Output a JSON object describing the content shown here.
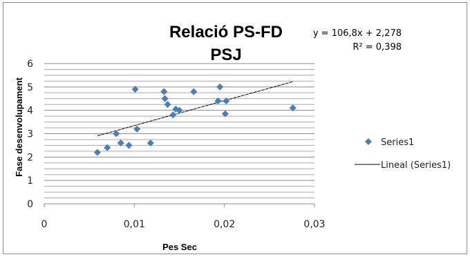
{
  "chart_data": {
    "type": "scatter",
    "title": "Relació PS-FD",
    "subtitle": "PSJ",
    "xlabel": "Pes Sec",
    "ylabel": "Fase desenvolupament",
    "xlim": [
      0,
      0.03
    ],
    "ylim": [
      0,
      6
    ],
    "x_ticks": [
      "0",
      "0,01",
      "0,02",
      "0,03"
    ],
    "y_ticks": [
      "0",
      "1",
      "2",
      "3",
      "4",
      "5",
      "6"
    ],
    "grid": "horizontal",
    "legend_position": "right",
    "series": [
      {
        "name": "Series1",
        "marker": "diamond",
        "color": "#4a7ebb",
        "points": [
          {
            "x": 0.0059,
            "y": 2.2
          },
          {
            "x": 0.007,
            "y": 2.4
          },
          {
            "x": 0.008,
            "y": 3.0
          },
          {
            "x": 0.0085,
            "y": 2.6
          },
          {
            "x": 0.0094,
            "y": 2.5
          },
          {
            "x": 0.0101,
            "y": 4.9
          },
          {
            "x": 0.0103,
            "y": 3.2
          },
          {
            "x": 0.0118,
            "y": 2.6
          },
          {
            "x": 0.0133,
            "y": 4.8
          },
          {
            "x": 0.0134,
            "y": 4.5
          },
          {
            "x": 0.0137,
            "y": 4.25
          },
          {
            "x": 0.0143,
            "y": 3.8
          },
          {
            "x": 0.0146,
            "y": 4.05
          },
          {
            "x": 0.015,
            "y": 4.0
          },
          {
            "x": 0.0166,
            "y": 4.8
          },
          {
            "x": 0.0193,
            "y": 4.4
          },
          {
            "x": 0.0195,
            "y": 5.0
          },
          {
            "x": 0.0201,
            "y": 3.85
          },
          {
            "x": 0.0202,
            "y": 4.4
          },
          {
            "x": 0.0276,
            "y": 4.1
          }
        ]
      }
    ],
    "trendline": {
      "name": "Lineal (Series1)",
      "slope": 106.8,
      "intercept": 2.278,
      "x_start": 0.0059,
      "x_end": 0.0276,
      "color": "#000000",
      "equation_label": "y = 106,8x + 2,278",
      "r2_label": "R² = 0,398"
    }
  }
}
